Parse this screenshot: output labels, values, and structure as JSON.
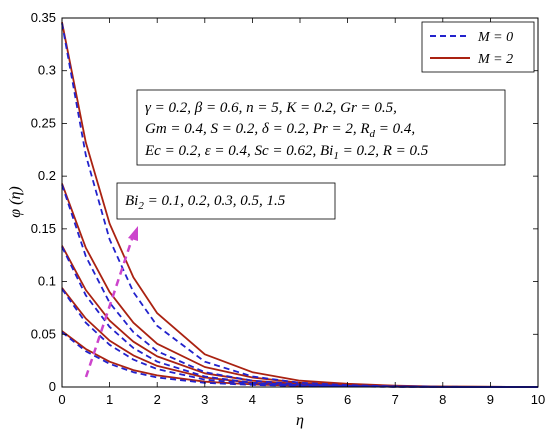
{
  "chart_data": {
    "type": "line",
    "xlabel": "η",
    "ylabel": "φ (η)",
    "xlim": [
      0,
      10
    ],
    "ylim": [
      0,
      0.35
    ],
    "x_ticks": [
      "0",
      "1",
      "2",
      "3",
      "4",
      "5",
      "6",
      "7",
      "8",
      "9",
      "10"
    ],
    "y_ticks": [
      "0",
      "0.05",
      "0.1",
      "0.15",
      "0.2",
      "0.25",
      "0.3",
      "0.35"
    ],
    "grid": false,
    "legend_position": "top-right",
    "legend": [
      {
        "label": "M = 0",
        "color": "#2222cc",
        "style": "dashed"
      },
      {
        "label": "M = 2",
        "color": "#aa2211",
        "style": "solid"
      }
    ],
    "bi2_values": [
      0.1,
      0.2,
      0.3,
      0.5,
      1.5
    ],
    "series": [
      {
        "group": "M = 0",
        "Bi2": 0.1,
        "x": [
          0,
          0.5,
          1,
          1.5,
          2,
          3,
          4,
          5,
          6,
          7,
          8,
          10
        ],
        "y": [
          0.052,
          0.034,
          0.022,
          0.014,
          0.009,
          0.004,
          0.002,
          0.001,
          0.0005,
          0.0002,
          0.0001,
          0
        ]
      },
      {
        "group": "M = 0",
        "Bi2": 0.2,
        "x": [
          0,
          0.5,
          1,
          1.5,
          2,
          3,
          4,
          5,
          6,
          7,
          8,
          10
        ],
        "y": [
          0.093,
          0.061,
          0.04,
          0.026,
          0.017,
          0.007,
          0.003,
          0.0013,
          0.0006,
          0.0002,
          0.0001,
          0
        ]
      },
      {
        "group": "M = 0",
        "Bi2": 0.3,
        "x": [
          0,
          0.5,
          1,
          1.5,
          2,
          3,
          4,
          5,
          6,
          7,
          8,
          10
        ],
        "y": [
          0.133,
          0.087,
          0.057,
          0.037,
          0.024,
          0.01,
          0.004,
          0.0017,
          0.0007,
          0.0003,
          0.0001,
          0
        ]
      },
      {
        "group": "M = 0",
        "Bi2": 0.5,
        "x": [
          0,
          0.5,
          1,
          1.5,
          2,
          3,
          4,
          5,
          6,
          7,
          8,
          10
        ],
        "y": [
          0.192,
          0.124,
          0.08,
          0.052,
          0.034,
          0.014,
          0.006,
          0.0025,
          0.001,
          0.0004,
          0.0001,
          0
        ]
      },
      {
        "group": "M = 0",
        "Bi2": 1.5,
        "x": [
          0,
          0.5,
          1,
          1.5,
          2,
          3,
          4,
          5,
          6,
          7,
          8,
          10
        ],
        "y": [
          0.345,
          0.22,
          0.14,
          0.09,
          0.058,
          0.024,
          0.01,
          0.004,
          0.0017,
          0.0007,
          0.0002,
          0
        ]
      },
      {
        "group": "M = 2",
        "Bi2": 0.1,
        "x": [
          0,
          0.5,
          1,
          1.5,
          2,
          3,
          4,
          5,
          6,
          7,
          8,
          10
        ],
        "y": [
          0.053,
          0.036,
          0.024,
          0.016,
          0.011,
          0.005,
          0.0025,
          0.0012,
          0.0006,
          0.0003,
          0.0001,
          0
        ]
      },
      {
        "group": "M = 2",
        "Bi2": 0.2,
        "x": [
          0,
          0.5,
          1,
          1.5,
          2,
          3,
          4,
          5,
          6,
          7,
          8,
          10
        ],
        "y": [
          0.094,
          0.065,
          0.044,
          0.03,
          0.02,
          0.009,
          0.004,
          0.002,
          0.0009,
          0.0004,
          0.0002,
          0
        ]
      },
      {
        "group": "M = 2",
        "Bi2": 0.3,
        "x": [
          0,
          0.5,
          1,
          1.5,
          2,
          3,
          4,
          5,
          6,
          7,
          8,
          10
        ],
        "y": [
          0.134,
          0.092,
          0.063,
          0.043,
          0.029,
          0.013,
          0.006,
          0.0028,
          0.0013,
          0.0006,
          0.0002,
          0
        ]
      },
      {
        "group": "M = 2",
        "Bi2": 0.5,
        "x": [
          0,
          0.5,
          1,
          1.5,
          2,
          3,
          4,
          5,
          6,
          7,
          8,
          10
        ],
        "y": [
          0.193,
          0.132,
          0.09,
          0.061,
          0.041,
          0.019,
          0.009,
          0.004,
          0.0018,
          0.0008,
          0.0003,
          0
        ]
      },
      {
        "group": "M = 2",
        "Bi2": 1.5,
        "x": [
          0,
          0.5,
          1,
          1.5,
          2,
          3,
          4,
          5,
          6,
          7,
          8,
          10
        ],
        "y": [
          0.346,
          0.232,
          0.155,
          0.104,
          0.07,
          0.031,
          0.014,
          0.006,
          0.003,
          0.0012,
          0.0004,
          0
        ]
      }
    ],
    "annotations": {
      "params_lines": [
        "γ = 0.2, β = 0.6, n = 5, K = 0.2, Gr = 0.5,",
        "Gm = 0.4, S = 0.2, δ = 0.2, Pr = 2, R",
        "Ec = 0.2, ε = 0.4, Sc = 0.62, Bi",
        ", R = 0.5"
      ],
      "params_line2_tail": " = 0.4,",
      "rd_sub": "d",
      "bi1_sub": "1",
      "bi1_tail": " = 0.2",
      "bi2_label_base": "Bi",
      "bi2_label_sub": "2",
      "bi2_label_tail": " = 0.1, 0.2, 0.3, 0.5, 1.5",
      "arrow_color": "#cc44cc"
    }
  }
}
